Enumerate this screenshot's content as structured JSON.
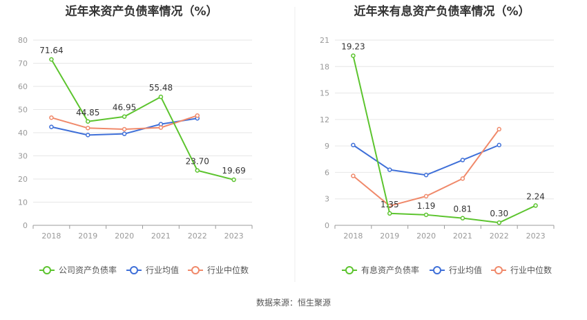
{
  "source": "数据来源：恒生聚源",
  "chart_data": [
    {
      "type": "line",
      "title": "近年来资产负债率情况（%）",
      "categories": [
        "2018",
        "2019",
        "2020",
        "2021",
        "2022",
        "2023"
      ],
      "ylim": [
        0,
        80
      ],
      "yticks": [
        0,
        10,
        20,
        30,
        40,
        50,
        60,
        70,
        80
      ],
      "grid": true,
      "legend_position": "bottom",
      "series": [
        {
          "name": "公司资产负债率",
          "color": "#5cc42e",
          "values": [
            71.64,
            44.85,
            46.95,
            55.48,
            23.7,
            19.69
          ],
          "labels": [
            "71.64",
            "44.85",
            "46.95",
            "55.48",
            "23.70",
            "19.69"
          ]
        },
        {
          "name": "行业均值",
          "color": "#3e6fd8",
          "values": [
            42.5,
            39.0,
            39.5,
            43.7,
            46.2,
            null
          ]
        },
        {
          "name": "行业中位数",
          "color": "#f0896a",
          "values": [
            46.5,
            42.0,
            41.5,
            42.2,
            47.4,
            null
          ]
        }
      ]
    },
    {
      "type": "line",
      "title": "近年来有息资产负债率情况（%）",
      "categories": [
        "2018",
        "2019",
        "2020",
        "2021",
        "2022",
        "2023"
      ],
      "ylim": [
        0,
        21
      ],
      "yticks": [
        0,
        3,
        6,
        9,
        12,
        15,
        18,
        21
      ],
      "grid": true,
      "legend_position": "bottom",
      "series": [
        {
          "name": "有息资产负债率",
          "color": "#5cc42e",
          "values": [
            19.23,
            1.35,
            1.19,
            0.81,
            0.3,
            2.24
          ],
          "labels": [
            "19.23",
            "1.35",
            "1.19",
            "0.81",
            "0.30",
            "2.24"
          ]
        },
        {
          "name": "行业均值",
          "color": "#3e6fd8",
          "values": [
            9.1,
            6.3,
            5.7,
            7.4,
            9.1,
            null
          ]
        },
        {
          "name": "行业中位数",
          "color": "#f0896a",
          "values": [
            5.6,
            2.2,
            3.3,
            5.3,
            10.9,
            null
          ]
        }
      ]
    }
  ]
}
